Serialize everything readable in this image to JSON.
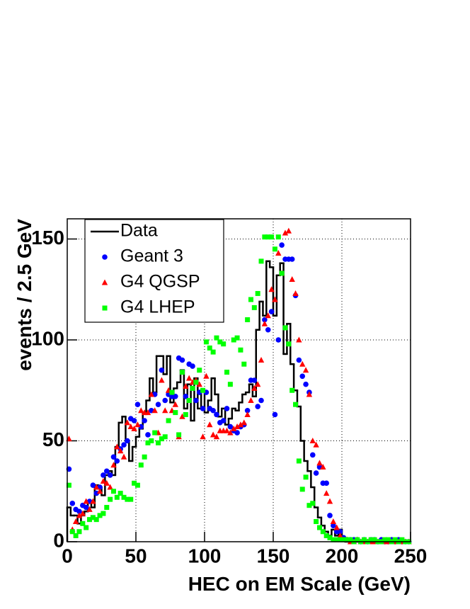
{
  "chart_data": {
    "type": "histogram",
    "x_label": "HEC on EM Scale (GeV)",
    "y_label": "events / 2.5 GeV",
    "bins": [
      0,
      2.5,
      5,
      7.5,
      10,
      12.5,
      15,
      17.5,
      20,
      22.5,
      25,
      27.5,
      30,
      32.5,
      35,
      37.5,
      40,
      42.5,
      45,
      47.5,
      50,
      52.5,
      55,
      57.5,
      60,
      62.5,
      65,
      67.5,
      70,
      72.5,
      75,
      77.5,
      80,
      82.5,
      85,
      87.5,
      90,
      92.5,
      95,
      97.5,
      100,
      102.5,
      105,
      107.5,
      110,
      112.5,
      115,
      117.5,
      120,
      122.5,
      125,
      127.5,
      130,
      132.5,
      135,
      137.5,
      140,
      142.5,
      145,
      147.5,
      150,
      152.5,
      155,
      157.5,
      160,
      162.5,
      165,
      167.5,
      170,
      172.5,
      175,
      177.5,
      180,
      182.5,
      185,
      187.5,
      190,
      192.5,
      195,
      197.5,
      200,
      202.5,
      205,
      207.5,
      210,
      212.5,
      215,
      217.5,
      220,
      222.5,
      225,
      227.5,
      230,
      232.5,
      235,
      237.5,
      240,
      242.5,
      245,
      247.5,
      250
    ],
    "series": [
      {
        "name": "Data",
        "color": "#000000",
        "style": "step",
        "values": [
          17,
          13,
          13,
          9,
          13,
          15,
          20,
          17,
          28,
          27,
          23,
          33,
          35,
          33,
          47,
          59,
          62,
          50,
          40,
          47,
          52,
          56,
          64,
          70,
          81,
          74,
          92,
          92,
          83,
          92,
          69,
          76,
          79,
          85,
          66,
          78,
          60,
          81,
          66,
          75,
          64,
          70,
          81,
          73,
          62,
          66,
          58,
          61,
          66,
          65,
          69,
          73,
          74,
          78,
          72,
          105,
          119,
          112,
          139,
          136,
          112,
          132,
          138,
          93,
          108,
          88,
          75,
          67,
          50,
          40,
          35,
          27,
          17,
          12,
          8,
          5,
          3,
          6,
          3,
          6,
          1,
          0,
          0,
          0,
          0,
          0,
          0,
          0,
          0,
          0,
          0,
          0,
          0,
          0,
          0,
          0,
          0,
          0,
          0,
          0
        ]
      },
      {
        "name": "Geant 3",
        "color": "#0000ff",
        "style": "circle",
        "values": [
          36,
          19,
          16,
          15,
          18,
          17,
          20,
          28,
          24,
          27,
          33,
          35,
          33,
          42,
          40,
          46,
          48,
          50,
          61,
          60,
          68,
          57,
          60,
          53,
          65,
          73,
          68,
          85,
          70,
          73,
          72,
          72,
          91,
          90,
          72,
          88,
          87,
          70,
          74,
          66,
          74,
          66,
          65,
          63,
          59,
          60,
          66,
          57,
          55,
          54,
          57,
          58,
          65,
          80,
          80,
          67,
          70,
          110,
          105,
          114,
          63,
          100,
          147,
          140,
          140,
          140,
          122,
          90,
          82,
          78,
          74,
          43,
          34,
          37,
          29,
          29,
          13,
          8,
          5,
          5,
          2,
          1,
          1,
          1,
          1,
          0,
          1,
          0,
          1,
          1,
          0,
          1,
          0,
          0,
          1,
          0,
          1,
          0,
          0,
          0
        ]
      },
      {
        "name": "G4 QGSP",
        "color": "#ff0000",
        "style": "triangle",
        "values": [
          51,
          6,
          10,
          13,
          14,
          20,
          16,
          20,
          27,
          25,
          30,
          29,
          27,
          38,
          47,
          45,
          42,
          59,
          57,
          56,
          58,
          65,
          64,
          64,
          73,
          65,
          54,
          80,
          65,
          75,
          65,
          68,
          52,
          62,
          77,
          81,
          79,
          80,
          78,
          52,
          82,
          58,
          53,
          52,
          55,
          55,
          55,
          54,
          56,
          57,
          58,
          59,
          63,
          70,
          76,
          78,
          90,
          108,
          112,
          125,
          120,
          143,
          133,
          153,
          154,
          130,
          123,
          100,
          88,
          85,
          73,
          50,
          48,
          39,
          37,
          24,
          20,
          10,
          7,
          3,
          1,
          1,
          0,
          0,
          1,
          0,
          0,
          0,
          0,
          0,
          0,
          0,
          0,
          0,
          0,
          0,
          0,
          0,
          0,
          0
        ]
      },
      {
        "name": "G4 LHEP",
        "color": "#00ff00",
        "style": "square",
        "values": [
          28,
          5,
          3,
          5,
          9,
          7,
          11,
          12,
          11,
          13,
          14,
          17,
          21,
          25,
          22,
          24,
          22,
          21,
          21,
          29,
          28,
          38,
          42,
          49,
          50,
          54,
          49,
          51,
          52,
          60,
          74,
          64,
          53,
          84,
          63,
          70,
          76,
          79,
          85,
          75,
          99,
          96,
          94,
          101,
          99,
          98,
          84,
          78,
          100,
          101,
          95,
          88,
          110,
          120,
          116,
          123,
          139,
          151,
          151,
          151,
          145,
          151,
          133,
          106,
          98,
          75,
          68,
          40,
          26,
          32,
          18,
          19,
          10,
          7,
          5,
          3,
          2,
          1,
          1,
          1,
          1,
          1,
          1,
          0,
          1,
          0,
          1,
          0,
          1,
          1,
          0,
          0,
          1,
          1,
          0,
          1,
          0,
          1,
          0,
          0
        ]
      }
    ],
    "xlim": [
      0,
      250
    ],
    "xticks": [
      0,
      50,
      100,
      150,
      200,
      250
    ],
    "ylim": [
      0,
      160
    ],
    "yticks": [
      0,
      50,
      100,
      150
    ],
    "grid": true,
    "legend": "top-left"
  }
}
